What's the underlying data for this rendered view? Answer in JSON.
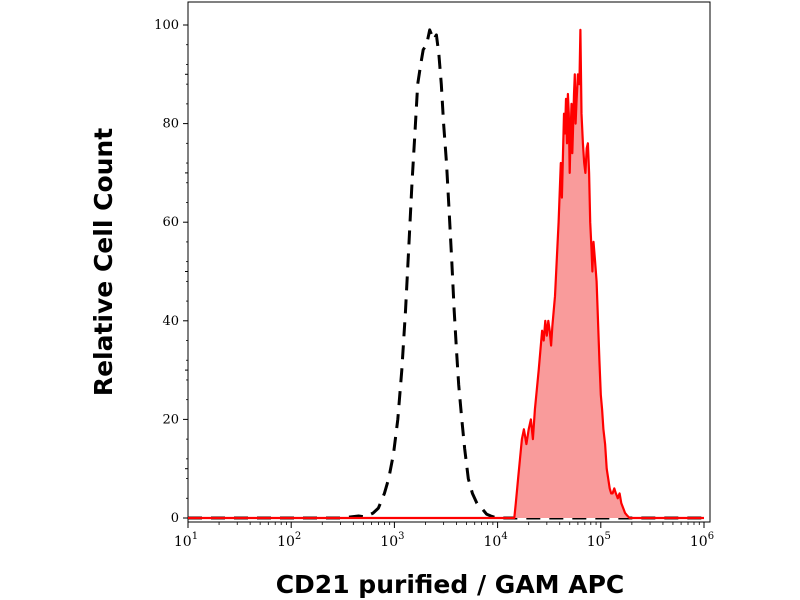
{
  "chart_data": {
    "type": "area",
    "xlabel": "CD21 purified / GAM APC",
    "ylabel": "Relative Cell Count",
    "x_scale": "log",
    "xlim": [
      10,
      1000000
    ],
    "ylim": [
      0,
      100
    ],
    "grid": false,
    "yticks": [
      {
        "value": 0,
        "label": "0"
      },
      {
        "value": 20,
        "label": "20"
      },
      {
        "value": 40,
        "label": "40"
      },
      {
        "value": 60,
        "label": "60"
      },
      {
        "value": 80,
        "label": "80"
      },
      {
        "value": 100,
        "label": "100"
      }
    ],
    "xticks": [
      {
        "value": 10,
        "base": "10",
        "exp": "1"
      },
      {
        "value": 100,
        "base": "10",
        "exp": "2"
      },
      {
        "value": 1000,
        "base": "10",
        "exp": "3"
      },
      {
        "value": 10000,
        "base": "10",
        "exp": "4"
      },
      {
        "value": 100000,
        "base": "10",
        "exp": "5"
      },
      {
        "value": 1000000,
        "base": "10",
        "exp": "6"
      }
    ],
    "series": [
      {
        "style": "dashed",
        "color": "#000000",
        "fill": "none",
        "points": [
          [
            8,
            0
          ],
          [
            300,
            0
          ],
          [
            450,
            0.4
          ],
          [
            520,
            0.2
          ],
          [
            620,
            1
          ],
          [
            700,
            2
          ],
          [
            800,
            5
          ],
          [
            880,
            8
          ],
          [
            980,
            13
          ],
          [
            1080,
            20
          ],
          [
            1180,
            30
          ],
          [
            1280,
            42
          ],
          [
            1380,
            55
          ],
          [
            1480,
            68
          ],
          [
            1580,
            78
          ],
          [
            1680,
            88
          ],
          [
            1800,
            92
          ],
          [
            1900,
            95
          ],
          [
            2050,
            96
          ],
          [
            2200,
            99
          ],
          [
            2400,
            97
          ],
          [
            2550,
            98
          ],
          [
            2700,
            94
          ],
          [
            2850,
            88
          ],
          [
            3000,
            80
          ],
          [
            3200,
            72
          ],
          [
            3400,
            62
          ],
          [
            3600,
            52
          ],
          [
            3800,
            42
          ],
          [
            4000,
            34
          ],
          [
            4200,
            27
          ],
          [
            4500,
            20
          ],
          [
            4800,
            14
          ],
          [
            5200,
            8
          ],
          [
            5700,
            5
          ],
          [
            6300,
            3
          ],
          [
            7000,
            2
          ],
          [
            7800,
            0.8
          ],
          [
            8600,
            0.4
          ],
          [
            9500,
            0.1
          ],
          [
            11000,
            0
          ],
          [
            1000000,
            0
          ]
        ]
      },
      {
        "style": "solid",
        "color": "#ff0000",
        "fill": "#f99b9b",
        "points": [
          [
            8,
            0
          ],
          [
            14500,
            0
          ],
          [
            15000,
            3
          ],
          [
            15800,
            8
          ],
          [
            16500,
            12
          ],
          [
            17200,
            16
          ],
          [
            18000,
            18
          ],
          [
            19000,
            15
          ],
          [
            20000,
            18
          ],
          [
            21000,
            20
          ],
          [
            22000,
            16
          ],
          [
            23000,
            22
          ],
          [
            24000,
            26
          ],
          [
            25000,
            30
          ],
          [
            26000,
            34
          ],
          [
            27000,
            38
          ],
          [
            28000,
            36
          ],
          [
            29000,
            40
          ],
          [
            30000,
            37
          ],
          [
            31000,
            40
          ],
          [
            32000,
            38
          ],
          [
            33000,
            35
          ],
          [
            34000,
            39
          ],
          [
            35000,
            42
          ],
          [
            36000,
            45
          ],
          [
            37000,
            50
          ],
          [
            38000,
            55
          ],
          [
            39000,
            60
          ],
          [
            40000,
            66
          ],
          [
            41000,
            72
          ],
          [
            42000,
            65
          ],
          [
            43000,
            74
          ],
          [
            44000,
            82
          ],
          [
            45000,
            78
          ],
          [
            46000,
            85
          ],
          [
            47000,
            76
          ],
          [
            48000,
            86
          ],
          [
            49000,
            82
          ],
          [
            50000,
            70
          ],
          [
            51000,
            78
          ],
          [
            52000,
            84
          ],
          [
            53000,
            74
          ],
          [
            54000,
            80
          ],
          [
            55000,
            86
          ],
          [
            56000,
            90
          ],
          [
            57000,
            80
          ],
          [
            58000,
            84
          ],
          [
            60000,
            90
          ],
          [
            62000,
            88
          ],
          [
            63500,
            99
          ],
          [
            65000,
            82
          ],
          [
            67000,
            76
          ],
          [
            69000,
            72
          ],
          [
            71000,
            70
          ],
          [
            73000,
            75
          ],
          [
            75000,
            76
          ],
          [
            77000,
            70
          ],
          [
            79000,
            60
          ],
          [
            81000,
            55
          ],
          [
            83000,
            50
          ],
          [
            85000,
            56
          ],
          [
            88000,
            52
          ],
          [
            91000,
            48
          ],
          [
            94000,
            40
          ],
          [
            97000,
            32
          ],
          [
            100000,
            25
          ],
          [
            103000,
            22
          ],
          [
            106000,
            18
          ],
          [
            110000,
            15
          ],
          [
            114000,
            10
          ],
          [
            118000,
            8
          ],
          [
            122000,
            6
          ],
          [
            126000,
            5
          ],
          [
            130000,
            5
          ],
          [
            135000,
            6
          ],
          [
            140000,
            5
          ],
          [
            146000,
            4
          ],
          [
            152000,
            5
          ],
          [
            158000,
            3
          ],
          [
            165000,
            2
          ],
          [
            172000,
            1
          ],
          [
            180000,
            0.5
          ],
          [
            190000,
            0
          ],
          [
            1000000,
            0
          ]
        ]
      }
    ]
  }
}
